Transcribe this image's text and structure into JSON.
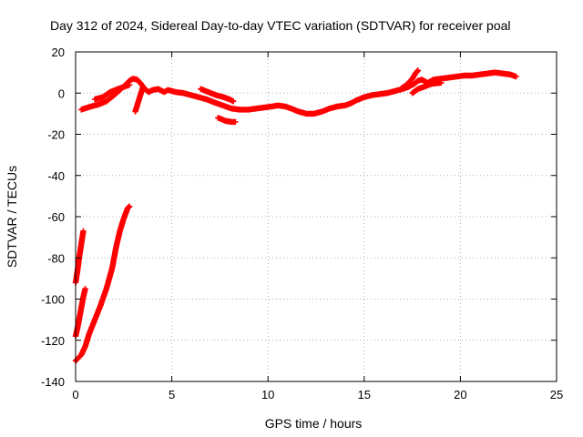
{
  "chart_data": {
    "type": "scatter",
    "title": "Day 312 of 2024, Sidereal Day-to-day VTEC variation (SDTVAR) for receiver poal",
    "xlabel": "GPS time / hours",
    "ylabel": "SDTVAR / TECUs",
    "xlim": [
      0,
      25
    ],
    "ylim": [
      -140,
      20
    ],
    "xticks": [
      0,
      5,
      10,
      15,
      20,
      25
    ],
    "yticks": [
      -140,
      -120,
      -100,
      -80,
      -60,
      -40,
      -20,
      0,
      20
    ],
    "grid": true,
    "marker": "plus",
    "series": [
      {
        "name": "SDTVAR",
        "color": "#ff0000",
        "segments": [
          {
            "name": "diurnal-trace",
            "points": [
              [
                0.3,
                -8
              ],
              [
                0.8,
                -6.5
              ],
              [
                1.2,
                -5.5
              ],
              [
                1.6,
                -4
              ],
              [
                2.0,
                -1
              ],
              [
                2.3,
                1.5
              ],
              [
                2.6,
                4
              ],
              [
                2.8,
                6
              ],
              [
                3.0,
                7
              ],
              [
                3.2,
                6.5
              ],
              [
                3.4,
                4.5
              ],
              [
                3.6,
                2
              ],
              [
                3.8,
                0.5
              ],
              [
                4.0,
                1.5
              ],
              [
                4.3,
                2
              ],
              [
                4.6,
                0.5
              ],
              [
                4.8,
                1.5
              ],
              [
                5.2,
                0.5
              ],
              [
                5.6,
                0
              ],
              [
                6.0,
                -1
              ],
              [
                6.4,
                -2
              ],
              [
                6.8,
                -3
              ],
              [
                7.2,
                -4.5
              ],
              [
                7.5,
                -5.5
              ],
              [
                7.8,
                -6.5
              ],
              [
                8.1,
                -7.5
              ],
              [
                8.5,
                -8
              ],
              [
                9.0,
                -8
              ],
              [
                9.4,
                -7.5
              ],
              [
                9.8,
                -7
              ],
              [
                10.2,
                -6.5
              ],
              [
                10.5,
                -6
              ],
              [
                10.9,
                -6.5
              ],
              [
                11.2,
                -7.5
              ],
              [
                11.6,
                -9
              ],
              [
                12.0,
                -10
              ],
              [
                12.4,
                -10
              ],
              [
                12.8,
                -9
              ],
              [
                13.2,
                -7.5
              ],
              [
                13.6,
                -6.5
              ],
              [
                14.0,
                -6
              ],
              [
                14.3,
                -5
              ],
              [
                14.6,
                -3.5
              ],
              [
                15.0,
                -2
              ],
              [
                15.4,
                -1
              ],
              [
                15.8,
                -0.5
              ],
              [
                16.2,
                0
              ],
              [
                16.6,
                1
              ],
              [
                17.0,
                2
              ],
              [
                17.3,
                3
              ],
              [
                17.6,
                4.5
              ],
              [
                17.8,
                6
              ],
              [
                18.0,
                6.5
              ],
              [
                18.3,
                5
              ],
              [
                18.6,
                6.5
              ],
              [
                19.0,
                7
              ],
              [
                19.4,
                7.5
              ],
              [
                19.8,
                8
              ],
              [
                20.2,
                8.5
              ],
              [
                20.6,
                8.5
              ],
              [
                21.0,
                9
              ],
              [
                21.4,
                9.5
              ],
              [
                21.8,
                10
              ],
              [
                22.2,
                9.5
              ],
              [
                22.6,
                9
              ],
              [
                22.9,
                8
              ]
            ]
          },
          {
            "name": "diurnal-trace-upper",
            "points": [
              [
                16.9,
                2
              ],
              [
                17.2,
                4
              ],
              [
                17.5,
                7
              ],
              [
                17.7,
                10
              ],
              [
                17.8,
                11
              ]
            ]
          },
          {
            "name": "diurnal-trace-lower",
            "points": [
              [
                17.5,
                0
              ],
              [
                17.8,
                2
              ],
              [
                18.1,
                3
              ],
              [
                18.5,
                4.5
              ],
              [
                19.0,
                5
              ]
            ]
          },
          {
            "name": "branch-a",
            "points": [
              [
                6.5,
                2
              ],
              [
                6.9,
                0.5
              ],
              [
                7.3,
                -1
              ],
              [
                7.7,
                -2
              ],
              [
                8.0,
                -3
              ],
              [
                8.2,
                -4
              ]
            ]
          },
          {
            "name": "branch-b",
            "points": [
              [
                7.4,
                -12
              ],
              [
                7.8,
                -13.5
              ],
              [
                8.1,
                -14
              ],
              [
                8.3,
                -14
              ]
            ]
          },
          {
            "name": "branch-c",
            "points": [
              [
                3.1,
                -9
              ],
              [
                3.2,
                -6
              ],
              [
                3.3,
                -3
              ],
              [
                3.4,
                0
              ],
              [
                3.5,
                3
              ]
            ]
          },
          {
            "name": "branch-d",
            "points": [
              [
                1.0,
                -3
              ],
              [
                1.4,
                -2
              ],
              [
                1.8,
                0.5
              ],
              [
                2.2,
                2
              ],
              [
                2.5,
                3
              ],
              [
                2.8,
                4
              ]
            ]
          },
          {
            "name": "steep-ramp-1",
            "points": [
              [
                0.0,
                -130
              ],
              [
                0.3,
                -127
              ],
              [
                0.5,
                -123
              ],
              [
                0.7,
                -117
              ],
              [
                1.0,
                -110
              ],
              [
                1.3,
                -103
              ],
              [
                1.6,
                -95
              ],
              [
                1.9,
                -85
              ],
              [
                2.1,
                -75
              ],
              [
                2.3,
                -67
              ],
              [
                2.5,
                -61
              ],
              [
                2.7,
                -56
              ],
              [
                2.8,
                -55
              ]
            ]
          },
          {
            "name": "steep-ramp-2",
            "points": [
              [
                0.0,
                -118
              ],
              [
                0.1,
                -114
              ],
              [
                0.2,
                -109
              ],
              [
                0.3,
                -104
              ],
              [
                0.4,
                -99
              ],
              [
                0.5,
                -95
              ]
            ]
          },
          {
            "name": "steep-ramp-3",
            "points": [
              [
                0.0,
                -92
              ],
              [
                0.1,
                -86
              ],
              [
                0.2,
                -79
              ],
              [
                0.3,
                -73
              ],
              [
                0.4,
                -67
              ]
            ]
          }
        ]
      }
    ]
  }
}
